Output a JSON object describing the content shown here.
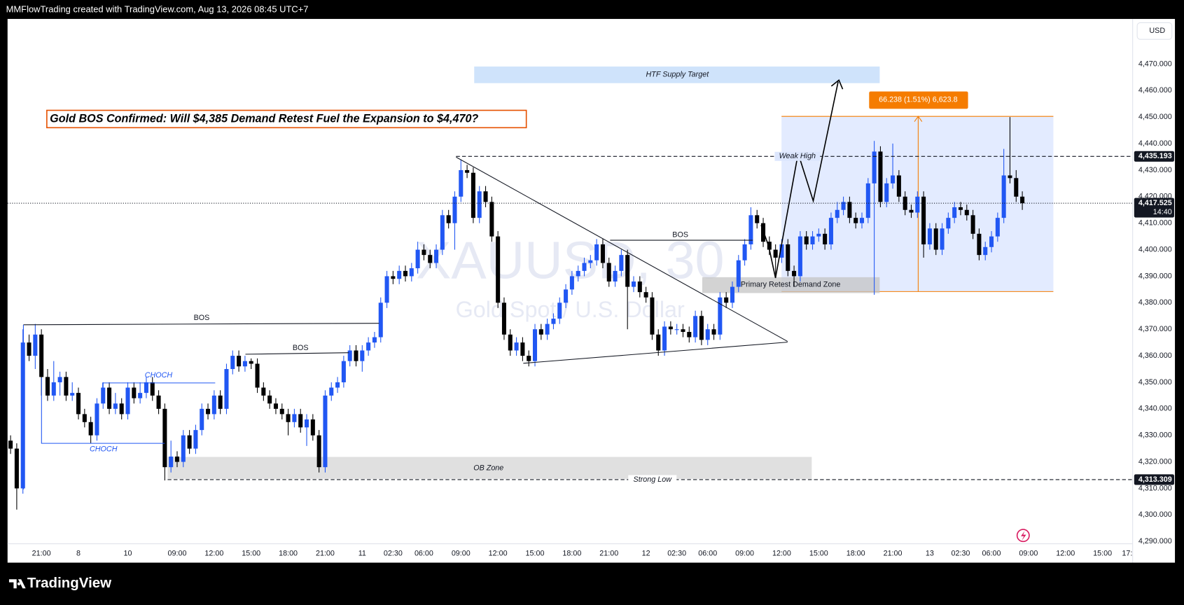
{
  "header": "MMFlowTrading created with TradingView.com, Aug 13, 2026 08:45 UTC+7",
  "footer": "TradingView",
  "chart_data": {
    "type": "candlestick",
    "title": "Gold BOS Confirmed: Will $4,385 Demand Retest Fuel the Expansion to $4,470?",
    "symbol": "XAUUSD, 30",
    "description": "Gold Spot / U.S. Dollar",
    "currency": "USD",
    "countdown": "14:40",
    "up_color": "#2157f3",
    "down_color": "#000000",
    "ylim": [
      4282,
      4487
    ],
    "yticks": [
      {
        "value": 4290,
        "label": "4,290.000"
      },
      {
        "value": 4300,
        "label": "4,300.000"
      },
      {
        "value": 4310,
        "label": "4,310.000"
      },
      {
        "value": 4320,
        "label": "4,320.000"
      },
      {
        "value": 4330,
        "label": "4,330.000"
      },
      {
        "value": 4340,
        "label": "4,340.000"
      },
      {
        "value": 4350,
        "label": "4,350.000"
      },
      {
        "value": 4360,
        "label": "4,360.000"
      },
      {
        "value": 4370,
        "label": "4,370.000"
      },
      {
        "value": 4380,
        "label": "4,380.000"
      },
      {
        "value": 4390,
        "label": "4,390.000"
      },
      {
        "value": 4400,
        "label": "4,400.000"
      },
      {
        "value": 4410,
        "label": "4,410.000"
      },
      {
        "value": 4420,
        "label": "4,420.000"
      },
      {
        "value": 4430,
        "label": "4,430.000"
      },
      {
        "value": 4440,
        "label": "4,440.000"
      },
      {
        "value": 4450,
        "label": "4,450.000"
      },
      {
        "value": 4460,
        "label": "4,460.000"
      },
      {
        "value": 4470,
        "label": "4,470.000"
      }
    ],
    "price_lines": [
      {
        "value": 4435.193,
        "label": "4,435.193"
      },
      {
        "value": 4417.525,
        "label": "4,417.525"
      },
      {
        "value": 4313.309,
        "label": "4,313.309"
      }
    ],
    "annotations": {
      "htf_zone": "HTF Supply Target",
      "weak_high": "Weak High",
      "strong_low": "Strong Low",
      "ob_zone": "OB Zone",
      "demand_zone": "Primary Retest Demand Zone",
      "bos": [
        "BOS",
        "BOS",
        "BOS"
      ],
      "choch": [
        "CHOCH",
        "CHOCH"
      ],
      "measure": "66.238 (1.51%) 6,623.8"
    },
    "categories": [
      null,
      null,
      null,
      null,
      null,
      "21:00",
      null,
      null,
      null,
      null,
      null,
      "8",
      null,
      null,
      null,
      null,
      null,
      null,
      null,
      "10",
      null,
      null,
      null,
      null,
      null,
      null,
      null,
      "09:00",
      null,
      null,
      null,
      null,
      null,
      "12:00",
      null,
      null,
      null,
      null,
      null,
      "15:00",
      null,
      null,
      null,
      null,
      null,
      "18:00",
      null,
      null,
      null,
      null,
      null,
      "21:00",
      null,
      null,
      null,
      null,
      null,
      "11",
      null,
      null,
      null,
      null,
      "02:30",
      null,
      null,
      null,
      null,
      "06:00",
      null,
      null,
      null,
      null,
      null,
      "09:00",
      null,
      null,
      null,
      null,
      null,
      "12:00",
      null,
      null,
      null,
      null,
      null,
      "15:00",
      null,
      null,
      null,
      null,
      null,
      "18:00",
      null,
      null,
      null,
      null,
      null,
      "21:00",
      null,
      null,
      null,
      null,
      null,
      "12",
      null,
      null,
      null,
      null,
      "02:30",
      null,
      null,
      null,
      null,
      "06:00",
      null,
      null,
      null,
      null,
      null,
      "09:00",
      null,
      null,
      null,
      null,
      null,
      "12:00",
      null,
      null,
      null,
      null,
      null,
      "15:00",
      null,
      null,
      null,
      null,
      null,
      "18:00",
      null,
      null,
      null,
      null,
      null,
      "21:00",
      null,
      null,
      null,
      null,
      null,
      "13",
      null,
      null,
      null,
      null,
      "02:30",
      null,
      null,
      null,
      null,
      "06:00",
      null,
      null,
      null,
      null,
      null,
      "09:00",
      null,
      null,
      null,
      null,
      null,
      "12:00",
      null,
      null,
      null,
      null,
      null,
      "15:00",
      null,
      null,
      null,
      "17:"
    ],
    "open": [
      4328,
      4325,
      4310,
      4365,
      4360,
      4368,
      4352,
      4345,
      4350,
      4352,
      4345,
      4346,
      4338,
      4335,
      4330,
      4342,
      4348,
      4340,
      4342,
      4338,
      4348,
      4344,
      4346,
      4350,
      4345,
      4340,
      4318,
      4322,
      4320,
      4330,
      4325,
      4332,
      4340,
      4338,
      4345,
      4340,
      4355,
      4360,
      4356,
      4358,
      4357,
      4348,
      4345,
      4342,
      4340,
      4338,
      4335,
      4338,
      4333,
      4336,
      4330,
      4318,
      4345,
      4348,
      4350,
      4358,
      4362,
      4358,
      4362,
      4365,
      4367,
      4380,
      4390,
      4389,
      4392,
      4390,
      4393,
      4400,
      4398,
      4395,
      4400,
      4413,
      4410,
      4420,
      4430,
      4429,
      4412,
      4422,
      4418,
      4405,
      4380,
      4368,
      4362,
      4365,
      4360,
      4358,
      4370,
      4368,
      4372,
      4374,
      4380,
      4385,
      4390,
      4392,
      4395,
      4396,
      4402,
      4395,
      4388,
      4392,
      4398,
      4386,
      4388,
      4384,
      4382,
      4368,
      4362,
      4371,
      4370,
      4370,
      4369,
      4367,
      4375,
      4366,
      4370,
      4368,
      4382,
      4380,
      4386,
      4396,
      4402,
      4413,
      4410,
      4403,
      4400,
      4397,
      4402,
      4392,
      4390,
      4405,
      4402,
      4405,
      4406,
      4402,
      4412,
      4415,
      4418,
      4412,
      4410,
      4412,
      4425,
      4437,
      4418,
      4425,
      4428,
      4420,
      4415,
      4414,
      4420,
      4402,
      4408,
      4400,
      4408,
      4412,
      4416,
      4415,
      4413,
      4406,
      4398,
      4401,
      4405,
      4412,
      4428,
      4427,
      4420,
      null,
      null,
      null,
      null,
      null,
      null,
      null,
      null,
      null,
      null,
      null,
      null,
      null,
      null,
      null,
      null,
      null
    ],
    "high": [
      4330,
      4327,
      4370,
      4368,
      4372,
      4370,
      4355,
      4358,
      4354,
      4354,
      4350,
      4348,
      4340,
      4337,
      4344,
      4350,
      4350,
      4346,
      4344,
      4350,
      4350,
      4350,
      4352,
      4352,
      4347,
      4342,
      4328,
      4324,
      4332,
      4332,
      4334,
      4342,
      4342,
      4347,
      4347,
      4357,
      4362,
      4362,
      4360,
      4359,
      4359,
      4350,
      4347,
      4344,
      4342,
      4340,
      4340,
      4340,
      4338,
      4338,
      4332,
      4347,
      4350,
      4352,
      4360,
      4364,
      4364,
      4364,
      4367,
      4369,
      4382,
      4392,
      4392,
      4394,
      4394,
      4395,
      4403,
      4402,
      4400,
      4402,
      4415,
      4415,
      4422,
      4434,
      4432,
      4431,
      4424,
      4424,
      4420,
      4407,
      4382,
      4370,
      4367,
      4367,
      4362,
      4372,
      4372,
      4374,
      4376,
      4382,
      4387,
      4392,
      4394,
      4397,
      4398,
      4404,
      4404,
      4397,
      4394,
      4400,
      4400,
      4390,
      4390,
      4386,
      4384,
      4370,
      4373,
      4373,
      4372,
      4372,
      4371,
      4377,
      4377,
      4372,
      4372,
      4384,
      4384,
      4388,
      4398,
      4404,
      4416,
      4415,
      4412,
      4405,
      4402,
      4404,
      4404,
      4394,
      4407,
      4407,
      4407,
      4408,
      4408,
      4414,
      4418,
      4420,
      4420,
      4414,
      4414,
      4427,
      4441,
      4439,
      4427,
      4440,
      4430,
      4422,
      4417,
      4422,
      4422,
      4410,
      4410,
      4410,
      4414,
      4418,
      4418,
      4417,
      4415,
      4408,
      4403,
      4407,
      4414,
      4438,
      4450,
      4430,
      4422,
      null,
      null,
      null,
      null,
      null,
      null,
      null,
      null,
      null,
      null,
      null,
      null,
      null,
      null,
      null,
      null,
      null
    ],
    "low": [
      4323,
      4302,
      4308,
      4358,
      4355,
      4345,
      4343,
      4343,
      4345,
      4343,
      4343,
      4336,
      4333,
      4327,
      4328,
      4340,
      4338,
      4338,
      4336,
      4336,
      4342,
      4342,
      4344,
      4343,
      4338,
      4313,
      4316,
      4318,
      4318,
      4323,
      4323,
      4330,
      4336,
      4336,
      4338,
      4338,
      4353,
      4354,
      4354,
      4355,
      4346,
      4343,
      4340,
      4338,
      4336,
      4330,
      4333,
      4331,
      4326,
      4328,
      4316,
      4316,
      4343,
      4346,
      4348,
      4356,
      4356,
      4354,
      4360,
      4363,
      4365,
      4378,
      4387,
      4387,
      4388,
      4388,
      4391,
      4396,
      4393,
      4393,
      4398,
      4408,
      4400,
      4418,
      4427,
      4410,
      4410,
      4416,
      4403,
      4378,
      4366,
      4360,
      4360,
      4358,
      4356,
      4356,
      4366,
      4366,
      4370,
      4372,
      4378,
      4383,
      4388,
      4390,
      4393,
      4394,
      4393,
      4386,
      4386,
      4390,
      4370,
      4384,
      4382,
      4380,
      4366,
      4360,
      4360,
      4368,
      4368,
      4367,
      4365,
      4365,
      4364,
      4364,
      4366,
      4366,
      4378,
      4378,
      4384,
      4394,
      4400,
      4408,
      4401,
      4398,
      4390,
      4395,
      4390,
      4386,
      4388,
      4400,
      4400,
      4403,
      4400,
      4400,
      4410,
      4413,
      4410,
      4408,
      4408,
      4410,
      4383,
      4416,
      4416,
      4423,
      4418,
      4413,
      4412,
      4412,
      4397,
      4400,
      4398,
      4398,
      4406,
      4410,
      4413,
      4411,
      4404,
      4396,
      4396,
      4399,
      4403,
      4410,
      4425,
      4418,
      4415,
      null,
      null,
      null,
      null,
      null,
      null,
      null,
      null,
      null,
      null,
      null,
      null,
      null,
      null,
      null,
      null,
      null
    ],
    "close": [
      4325,
      4310,
      4365,
      4360,
      4368,
      4352,
      4345,
      4350,
      4352,
      4345,
      4346,
      4338,
      4335,
      4330,
      4342,
      4348,
      4340,
      4342,
      4338,
      4348,
      4344,
      4346,
      4350,
      4345,
      4340,
      4318,
      4322,
      4320,
      4330,
      4325,
      4332,
      4340,
      4338,
      4345,
      4340,
      4355,
      4360,
      4356,
      4358,
      4357,
      4348,
      4345,
      4342,
      4340,
      4338,
      4335,
      4338,
      4333,
      4336,
      4330,
      4318,
      4345,
      4348,
      4350,
      4358,
      4362,
      4358,
      4362,
      4365,
      4367,
      4380,
      4390,
      4389,
      4392,
      4390,
      4393,
      4400,
      4398,
      4395,
      4400,
      4413,
      4410,
      4420,
      4430,
      4429,
      4412,
      4422,
      4418,
      4405,
      4380,
      4368,
      4362,
      4365,
      4360,
      4358,
      4370,
      4368,
      4372,
      4374,
      4380,
      4385,
      4390,
      4392,
      4395,
      4396,
      4402,
      4395,
      4388,
      4392,
      4398,
      4386,
      4388,
      4384,
      4382,
      4368,
      4362,
      4371,
      4370,
      4370,
      4369,
      4367,
      4375,
      4366,
      4370,
      4368,
      4382,
      4380,
      4386,
      4396,
      4402,
      4413,
      4410,
      4403,
      4400,
      4397,
      4402,
      4392,
      4390,
      4405,
      4402,
      4405,
      4406,
      4402,
      4412,
      4415,
      4418,
      4412,
      4410,
      4412,
      4425,
      4437,
      4418,
      4425,
      4428,
      4420,
      4415,
      4414,
      4420,
      4402,
      4408,
      4400,
      4408,
      4412,
      4416,
      4415,
      4413,
      4406,
      4398,
      4401,
      4405,
      4412,
      4428,
      4427,
      4420,
      4417.525,
      null,
      null,
      null,
      null,
      null,
      null,
      null,
      null,
      null,
      null,
      null,
      null,
      null,
      null,
      null,
      null,
      null
    ]
  }
}
